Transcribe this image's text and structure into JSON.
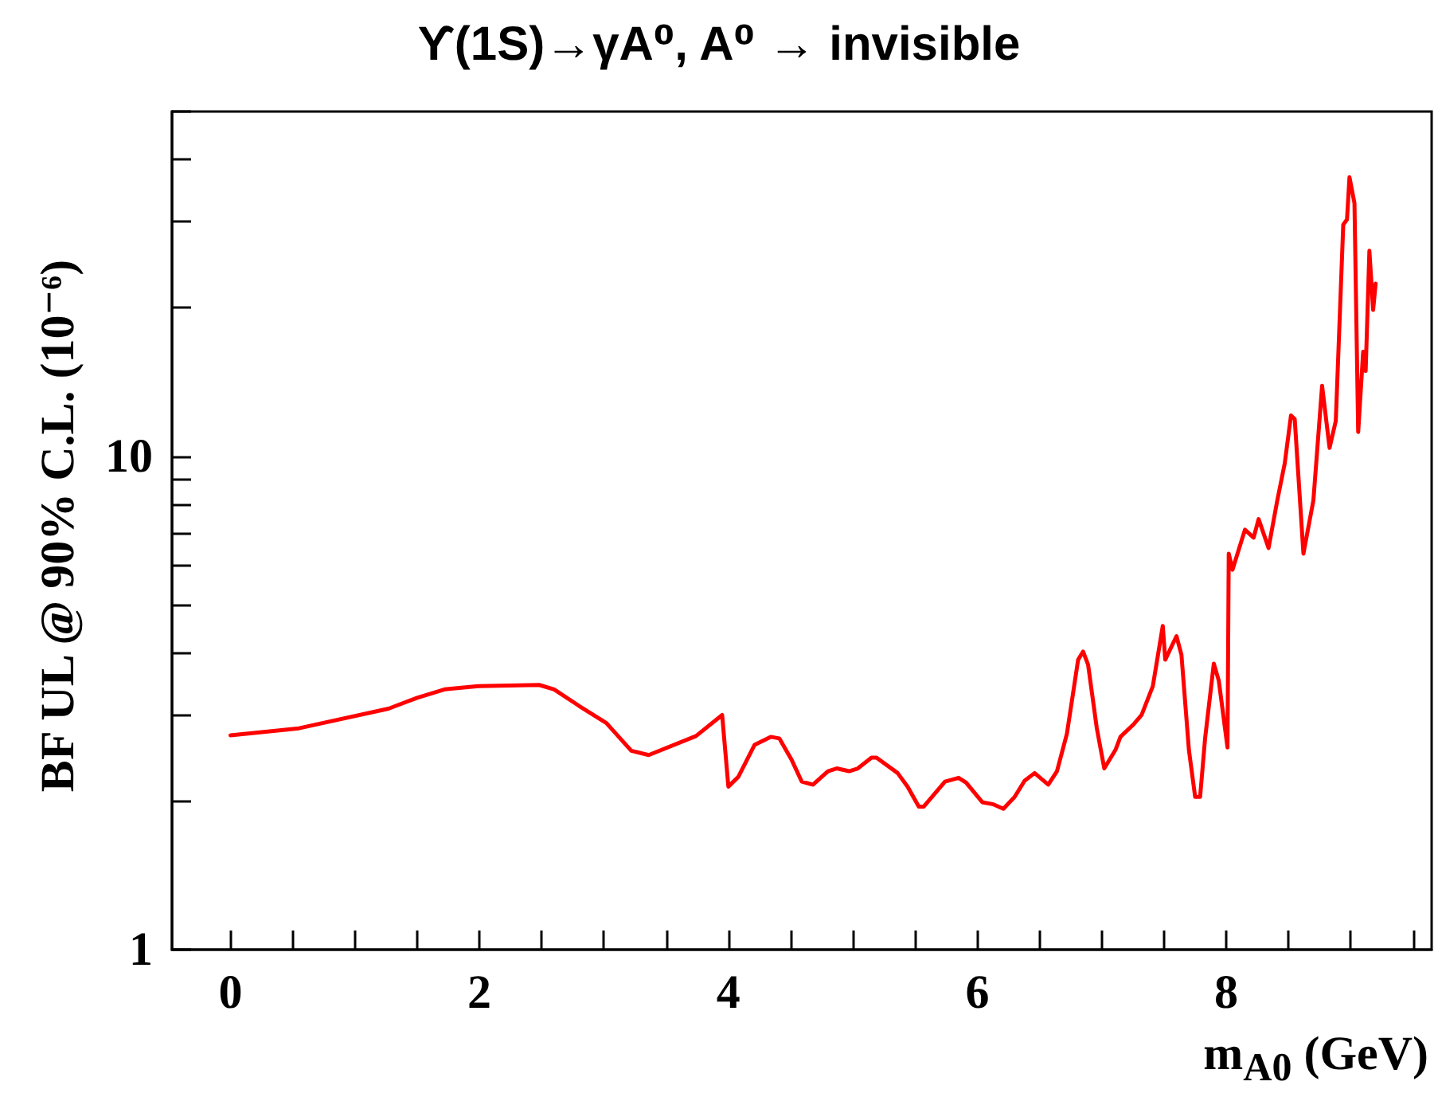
{
  "chart_data": {
    "type": "line",
    "title": "ϒ(1S)→γA⁰, A⁰ → invisible",
    "xlabel": "m$_{A0}$ (GeV)",
    "ylabel": "BF UL @ 90% C.L. (10⁻⁶)",
    "log": "y",
    "xlim": [
      -0.47,
      9.65
    ],
    "ylim": [
      1,
      50
    ],
    "xticks": [
      0,
      {
        "value": 0.5,
        "label": null
      },
      {
        "value": 1,
        "label": null
      },
      {
        "value": 1.5,
        "label": null
      },
      2,
      {
        "value": 2.5,
        "label": null
      },
      {
        "value": 3,
        "label": null
      },
      {
        "value": 3.5,
        "label": null
      },
      4,
      {
        "value": 4.5,
        "label": null
      },
      {
        "value": 5,
        "label": null
      },
      {
        "value": 5.5,
        "label": null
      },
      6,
      {
        "value": 6.5,
        "label": null
      },
      {
        "value": 7,
        "label": null
      },
      {
        "value": 7.5,
        "label": null
      },
      8,
      {
        "value": 8.5,
        "label": null
      },
      {
        "value": 9,
        "label": null
      },
      {
        "value": 9.5,
        "label": null
      }
    ],
    "yticks": [
      1,
      {
        "value": 2,
        "label": null
      },
      {
        "value": 3,
        "label": null
      },
      {
        "value": 4,
        "label": null
      },
      {
        "value": 5,
        "label": null
      },
      {
        "value": 6,
        "label": null
      },
      {
        "value": 7,
        "label": null
      },
      {
        "value": 8,
        "label": null
      },
      {
        "value": 9,
        "label": null
      },
      10,
      {
        "value": 20,
        "label": null
      },
      {
        "value": 30,
        "label": null
      },
      {
        "value": 40,
        "label": null
      },
      {
        "value": 50,
        "label": null
      }
    ],
    "grid": false,
    "marker": "none",
    "line_style": "solid",
    "series": [
      {
        "color": "#ff0000",
        "x": [
          0,
          0.55,
          1.27,
          1.5,
          1.72,
          1.99,
          2.48,
          2.6,
          2.8,
          3.02,
          3.22,
          3.36,
          3.74,
          3.95,
          4.0,
          4.08,
          4.21,
          4.34,
          4.41,
          4.51,
          4.59,
          4.68,
          4.8,
          4.87,
          4.97,
          5.04,
          5.15,
          5.19,
          5.36,
          5.44,
          5.53,
          5.57,
          5.74,
          5.85,
          5.91,
          6.04,
          6.13,
          6.21,
          6.3,
          6.38,
          6.46,
          6.57,
          6.64,
          6.72,
          6.81,
          6.85,
          6.89,
          6.96,
          7.02,
          7.11,
          7.15,
          7.26,
          7.32,
          7.41,
          7.49,
          7.51,
          7.6,
          7.64,
          7.7,
          7.75,
          7.79,
          7.83,
          7.9,
          7.94,
          8.01,
          8.02,
          8.05,
          8.15,
          8.22,
          8.26,
          8.34,
          8.41,
          8.47,
          8.52,
          8.55,
          8.62,
          8.7,
          8.77,
          8.83,
          8.88,
          8.94,
          8.97,
          8.99,
          9.03,
          9.06,
          9.1,
          9.12,
          9.15,
          9.18,
          9.2
        ],
        "values": [
          2.72,
          2.81,
          3.08,
          3.24,
          3.37,
          3.42,
          3.44,
          3.37,
          3.12,
          2.88,
          2.53,
          2.48,
          2.71,
          2.99,
          2.14,
          2.24,
          2.6,
          2.7,
          2.68,
          2.42,
          2.19,
          2.16,
          2.3,
          2.33,
          2.3,
          2.33,
          2.45,
          2.45,
          2.28,
          2.14,
          1.95,
          1.95,
          2.19,
          2.23,
          2.18,
          1.99,
          1.97,
          1.93,
          2.04,
          2.2,
          2.28,
          2.16,
          2.3,
          2.74,
          3.87,
          4.02,
          3.78,
          2.81,
          2.33,
          2.54,
          2.7,
          2.87,
          2.99,
          3.42,
          4.53,
          3.87,
          4.32,
          3.96,
          2.54,
          2.04,
          2.04,
          2.68,
          3.8,
          3.51,
          2.57,
          6.35,
          5.89,
          7.1,
          6.84,
          7.46,
          6.52,
          8.14,
          9.68,
          12.1,
          11.9,
          6.35,
          8.14,
          13.9,
          10.4,
          11.8,
          29.5,
          30.2,
          36.8,
          32.6,
          11.2,
          16.3,
          14.9,
          26.1,
          19.8,
          22.4
        ]
      }
    ]
  }
}
